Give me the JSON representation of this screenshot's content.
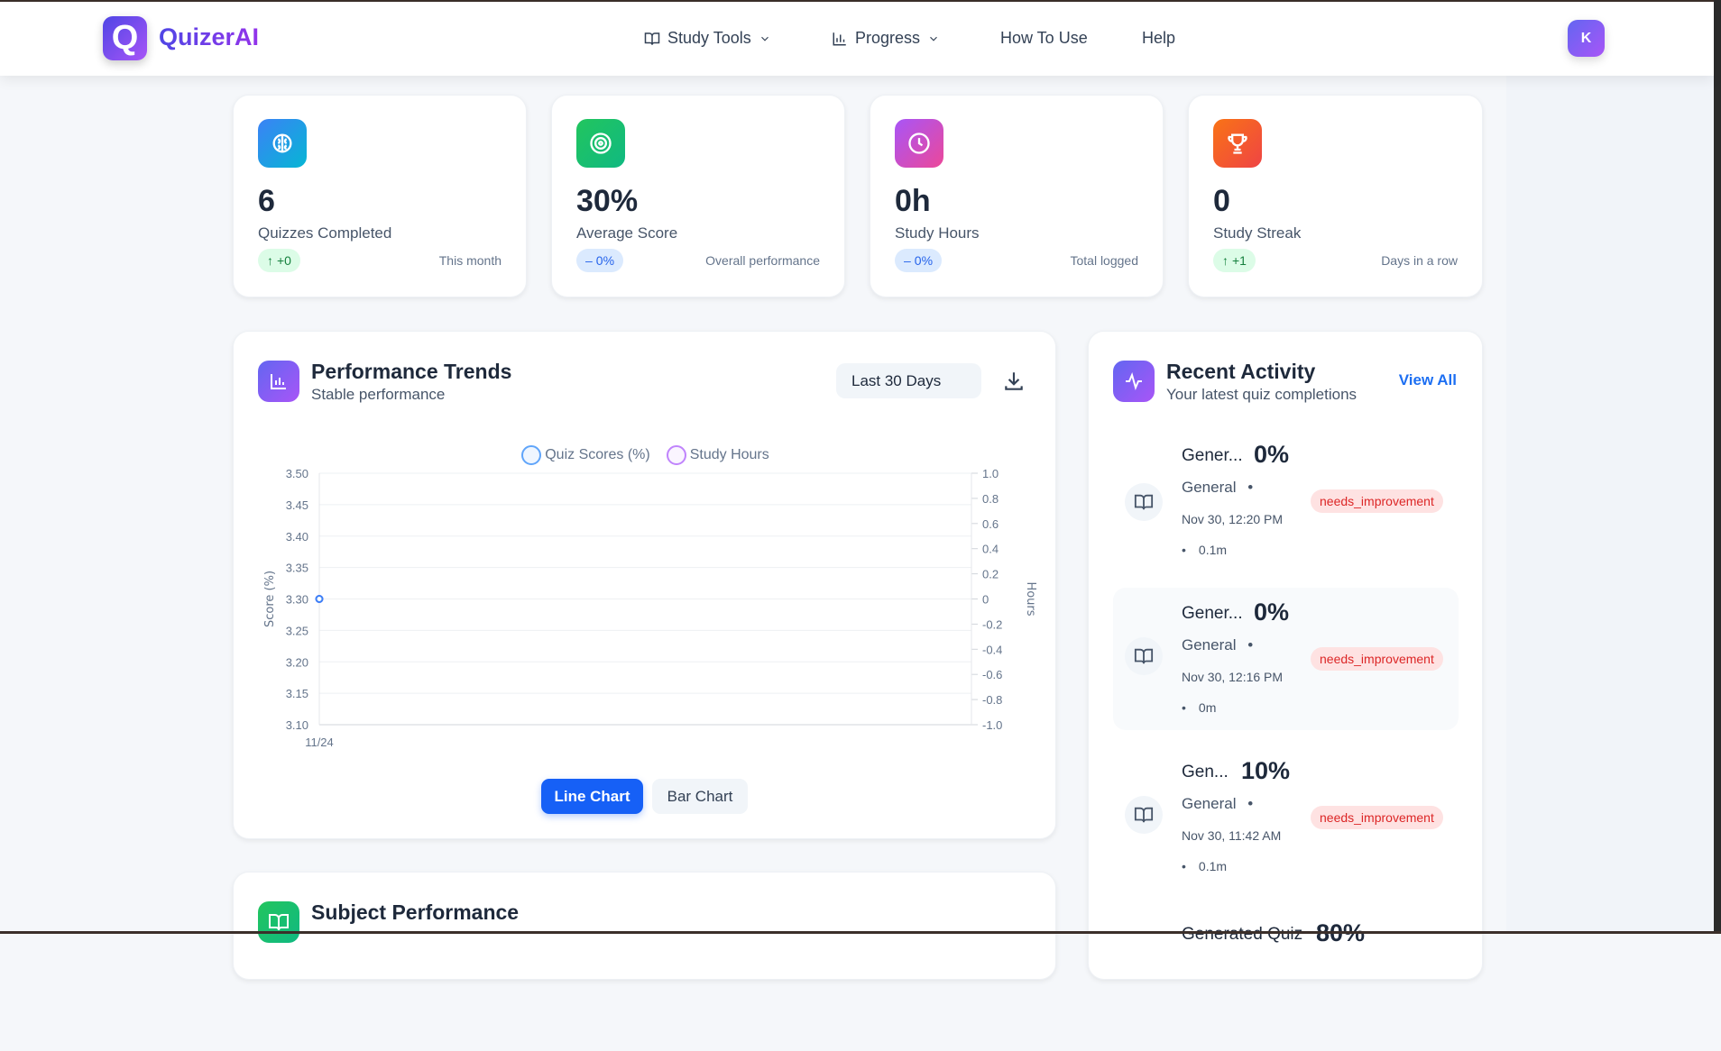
{
  "brand": {
    "name": "QuizerAI",
    "logo_letter": "Q"
  },
  "nav": {
    "items": [
      {
        "label": "Study Tools",
        "icon": "book-icon",
        "dropdown": true
      },
      {
        "label": "Progress",
        "icon": "bar-chart-icon",
        "dropdown": true
      },
      {
        "label": "How To Use"
      },
      {
        "label": "Help"
      }
    ],
    "avatar": "K"
  },
  "stats": [
    {
      "value": "6",
      "label": "Quizzes Completed",
      "change": "+0",
      "change_icon": "arrow-up-icon",
      "note": "This month",
      "icon": "brain-icon",
      "color": "#0ea5e9"
    },
    {
      "value": "30%",
      "label": "Average Score",
      "change": "0%",
      "change_icon": "minus-icon",
      "note": "Overall performance",
      "icon": "target-icon",
      "color": "#16c55e"
    },
    {
      "value": "0h",
      "label": "Study Hours",
      "change": "0%",
      "change_icon": "minus-icon",
      "note": "Total logged",
      "icon": "clock-icon",
      "color": "#c443e8"
    },
    {
      "value": "0",
      "label": "Study Streak",
      "change": "+1",
      "change_icon": "arrow-up-icon",
      "note": "Days in a row",
      "icon": "trophy-icon",
      "color": "#f9541f"
    }
  ],
  "performance": {
    "title": "Performance Trends",
    "subtitle": "Stable performance",
    "range": "Last 30 Days",
    "toggle": {
      "line": "Line Chart",
      "bar": "Bar Chart",
      "active": "line"
    }
  },
  "chart_data": {
    "type": "line",
    "x": [
      "11/24"
    ],
    "series": [
      {
        "name": "Quiz Scores (%)",
        "axis": "left",
        "values": [
          3.3
        ],
        "color": "#3b82f6"
      },
      {
        "name": "Study Hours",
        "axis": "right",
        "values": [
          0
        ],
        "color": "#a855f7"
      }
    ],
    "ylabel": "Score (%)",
    "y2label": "Hours",
    "ylim": [
      3.1,
      3.5
    ],
    "yticks": [
      "3.50",
      "3.45",
      "3.40",
      "3.35",
      "3.30",
      "3.25",
      "3.20",
      "3.15",
      "3.10"
    ],
    "y2lim": [
      -1,
      1
    ],
    "y2ticks": [
      "1.0",
      "0.8",
      "0.6",
      "0.4",
      "0.2",
      "0",
      "-0.2",
      "-0.4",
      "-0.6",
      "-0.8",
      "-1.0"
    ],
    "grid": true,
    "legend": "top"
  },
  "subject": {
    "title": "Subject Performance"
  },
  "activity": {
    "title": "Recent Activity",
    "subtitle": "Your latest quiz completions",
    "view_all": "View All",
    "items": [
      {
        "title": "Gener...",
        "score": "0%",
        "subject": "General",
        "date": "Nov 30, 12:20 PM",
        "duration": "0.1m",
        "status": "needs_improvement"
      },
      {
        "title": "Gener...",
        "score": "0%",
        "subject": "General",
        "date": "Nov 30, 12:16 PM",
        "duration": "0m",
        "status": "needs_improvement"
      },
      {
        "title": "Gen...",
        "score": "10%",
        "subject": "General",
        "date": "Nov 30, 11:42 AM",
        "duration": "0.1m",
        "status": "needs_improvement"
      },
      {
        "title": "Generated Quiz",
        "score": "80%"
      }
    ]
  }
}
